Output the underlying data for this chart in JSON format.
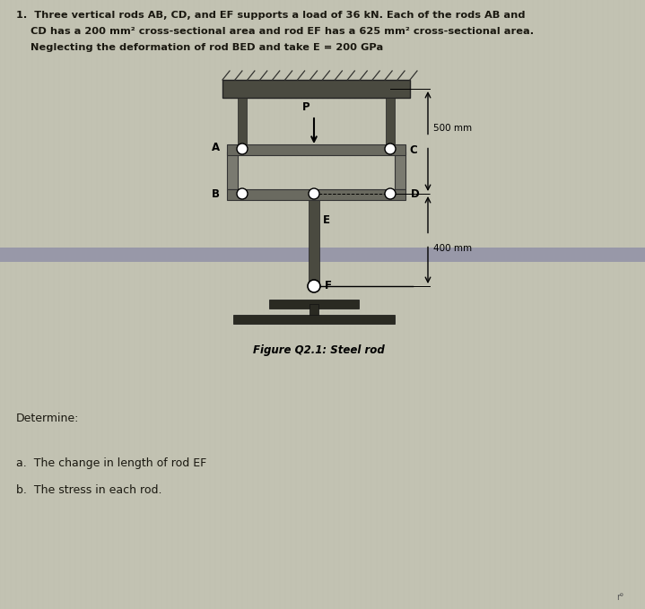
{
  "bg_color": "#c2c2b2",
  "text_color": "#1a1810",
  "rod_color": "#4a4a40",
  "beam_color": "#5a5a50",
  "wall_color": "#3a3a30",
  "base_color": "#2a2a22",
  "separator_color": "#9090a0",
  "dim_color": "#1a1810",
  "figure_caption": "Figure Q2.1: Steel rod",
  "dim_500": "500 mm",
  "dim_400": "400 mm",
  "title_l1": "1.  Three vertical rods AB, CD, and EF supports a load of 36 kN. Each of the rods AB and",
  "title_l2": "    CD has a 200 mm² cross-sectional area and rod EF has a 625 mm² cross-sectional area.",
  "title_l3": "    Neglecting the deformation of rod BED and take E = 200 GPa",
  "determine": "Determine:",
  "sub_a": "a.  The change in length of rod EF",
  "sub_b": "b.  The stress in each rod."
}
